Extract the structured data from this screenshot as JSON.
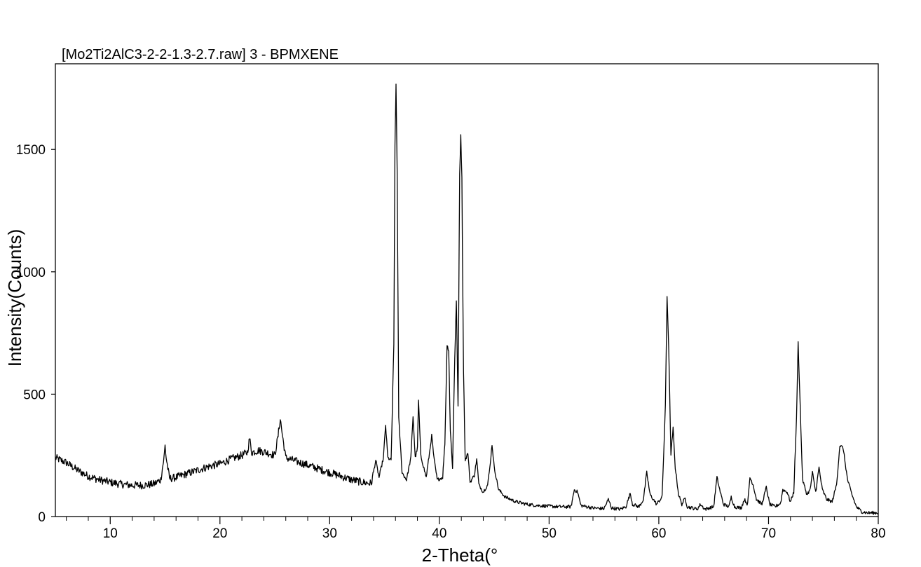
{
  "chart_data": {
    "type": "line",
    "title": "[Mo2Ti2AlC3-2-2-1.3-2.7.raw] 3 - BPMXENE",
    "xlabel": "2-Theta(°",
    "ylabel": "Intensity(Counts)",
    "xlim": [
      5,
      80
    ],
    "ylim": [
      0,
      1850
    ],
    "xticks": [
      10,
      20,
      30,
      40,
      50,
      60,
      70,
      80
    ],
    "yticks": [
      0,
      500,
      1000,
      1500
    ],
    "x_minor_step": 2,
    "grid": false,
    "line_color": "#000000",
    "series": [
      {
        "points": [
          [
            5.0,
            240
          ],
          [
            6.0,
            220
          ],
          [
            7.0,
            190
          ],
          [
            8.0,
            165
          ],
          [
            9.0,
            150
          ],
          [
            10.0,
            140
          ],
          [
            11.0,
            132
          ],
          [
            12.0,
            128
          ],
          [
            13.0,
            128
          ],
          [
            14.0,
            133
          ],
          [
            14.6,
            150
          ],
          [
            14.9,
            240
          ],
          [
            15.0,
            290
          ],
          [
            15.1,
            240
          ],
          [
            15.4,
            155
          ],
          [
            16.0,
            160
          ],
          [
            17.0,
            175
          ],
          [
            18.0,
            190
          ],
          [
            19.0,
            205
          ],
          [
            20.0,
            215
          ],
          [
            21.0,
            235
          ],
          [
            22.0,
            250
          ],
          [
            22.5,
            262
          ],
          [
            22.7,
            320
          ],
          [
            22.9,
            262
          ],
          [
            23.5,
            270
          ],
          [
            24.0,
            265
          ],
          [
            24.5,
            258
          ],
          [
            25.0,
            250
          ],
          [
            25.3,
            330
          ],
          [
            25.5,
            400
          ],
          [
            25.7,
            330
          ],
          [
            26.0,
            240
          ],
          [
            27.0,
            225
          ],
          [
            28.0,
            210
          ],
          [
            29.0,
            195
          ],
          [
            30.0,
            180
          ],
          [
            31.0,
            165
          ],
          [
            32.0,
            150
          ],
          [
            33.0,
            140
          ],
          [
            33.8,
            135
          ],
          [
            34.2,
            230
          ],
          [
            34.5,
            160
          ],
          [
            34.9,
            240
          ],
          [
            35.1,
            375
          ],
          [
            35.3,
            240
          ],
          [
            35.6,
            230
          ],
          [
            35.85,
            700
          ],
          [
            35.95,
            1520
          ],
          [
            36.05,
            1765
          ],
          [
            36.15,
            1420
          ],
          [
            36.3,
            400
          ],
          [
            36.6,
            180
          ],
          [
            37.0,
            150
          ],
          [
            37.4,
            240
          ],
          [
            37.6,
            410
          ],
          [
            37.8,
            240
          ],
          [
            38.0,
            280
          ],
          [
            38.1,
            475
          ],
          [
            38.3,
            250
          ],
          [
            38.8,
            160
          ],
          [
            39.1,
            260
          ],
          [
            39.3,
            330
          ],
          [
            39.5,
            240
          ],
          [
            39.8,
            150
          ],
          [
            40.3,
            160
          ],
          [
            40.5,
            300
          ],
          [
            40.7,
            700
          ],
          [
            40.85,
            680
          ],
          [
            41.0,
            350
          ],
          [
            41.2,
            200
          ],
          [
            41.4,
            650
          ],
          [
            41.55,
            880
          ],
          [
            41.7,
            450
          ],
          [
            41.85,
            1400
          ],
          [
            41.95,
            1560
          ],
          [
            42.05,
            1380
          ],
          [
            42.2,
            600
          ],
          [
            42.35,
            230
          ],
          [
            42.6,
            260
          ],
          [
            42.8,
            140
          ],
          [
            43.2,
            170
          ],
          [
            43.4,
            235
          ],
          [
            43.6,
            130
          ],
          [
            44.0,
            100
          ],
          [
            44.4,
            130
          ],
          [
            44.6,
            200
          ],
          [
            44.8,
            295
          ],
          [
            45.0,
            200
          ],
          [
            45.4,
            110
          ],
          [
            46.0,
            80
          ],
          [
            47.0,
            60
          ],
          [
            48.0,
            50
          ],
          [
            49.0,
            45
          ],
          [
            50.0,
            42
          ],
          [
            51.0,
            40
          ],
          [
            52.0,
            40
          ],
          [
            52.3,
            110
          ],
          [
            52.6,
            100
          ],
          [
            52.9,
            45
          ],
          [
            54.0,
            35
          ],
          [
            55.0,
            32
          ],
          [
            55.4,
            70
          ],
          [
            55.7,
            35
          ],
          [
            56.5,
            30
          ],
          [
            57.0,
            40
          ],
          [
            57.4,
            95
          ],
          [
            57.6,
            50
          ],
          [
            58.2,
            40
          ],
          [
            58.6,
            70
          ],
          [
            58.9,
            180
          ],
          [
            59.2,
            90
          ],
          [
            59.8,
            50
          ],
          [
            60.3,
            80
          ],
          [
            60.6,
            450
          ],
          [
            60.75,
            900
          ],
          [
            60.9,
            700
          ],
          [
            61.1,
            250
          ],
          [
            61.3,
            360
          ],
          [
            61.5,
            200
          ],
          [
            61.8,
            90
          ],
          [
            62.1,
            50
          ],
          [
            62.4,
            75
          ],
          [
            62.6,
            40
          ],
          [
            63.5,
            30
          ],
          [
            63.8,
            50
          ],
          [
            64.2,
            30
          ],
          [
            65.0,
            40
          ],
          [
            65.3,
            160
          ],
          [
            65.6,
            100
          ],
          [
            65.9,
            50
          ],
          [
            66.4,
            40
          ],
          [
            66.6,
            80
          ],
          [
            66.9,
            40
          ],
          [
            67.5,
            35
          ],
          [
            67.8,
            70
          ],
          [
            68.1,
            50
          ],
          [
            68.3,
            160
          ],
          [
            68.6,
            130
          ],
          [
            68.9,
            70
          ],
          [
            69.4,
            50
          ],
          [
            69.8,
            120
          ],
          [
            70.1,
            50
          ],
          [
            70.6,
            40
          ],
          [
            71.1,
            55
          ],
          [
            71.3,
            110
          ],
          [
            71.7,
            100
          ],
          [
            72.0,
            60
          ],
          [
            72.3,
            100
          ],
          [
            72.55,
            400
          ],
          [
            72.7,
            710
          ],
          [
            72.85,
            500
          ],
          [
            73.1,
            150
          ],
          [
            73.5,
            90
          ],
          [
            73.8,
            110
          ],
          [
            74.0,
            180
          ],
          [
            74.3,
            100
          ],
          [
            74.6,
            200
          ],
          [
            74.9,
            110
          ],
          [
            75.3,
            70
          ],
          [
            75.8,
            60
          ],
          [
            76.2,
            130
          ],
          [
            76.5,
            290
          ],
          [
            76.8,
            280
          ],
          [
            77.2,
            150
          ],
          [
            77.6,
            90
          ],
          [
            78.0,
            40
          ],
          [
            78.5,
            20
          ],
          [
            79.0,
            15
          ],
          [
            80.0,
            15
          ]
        ]
      }
    ]
  }
}
